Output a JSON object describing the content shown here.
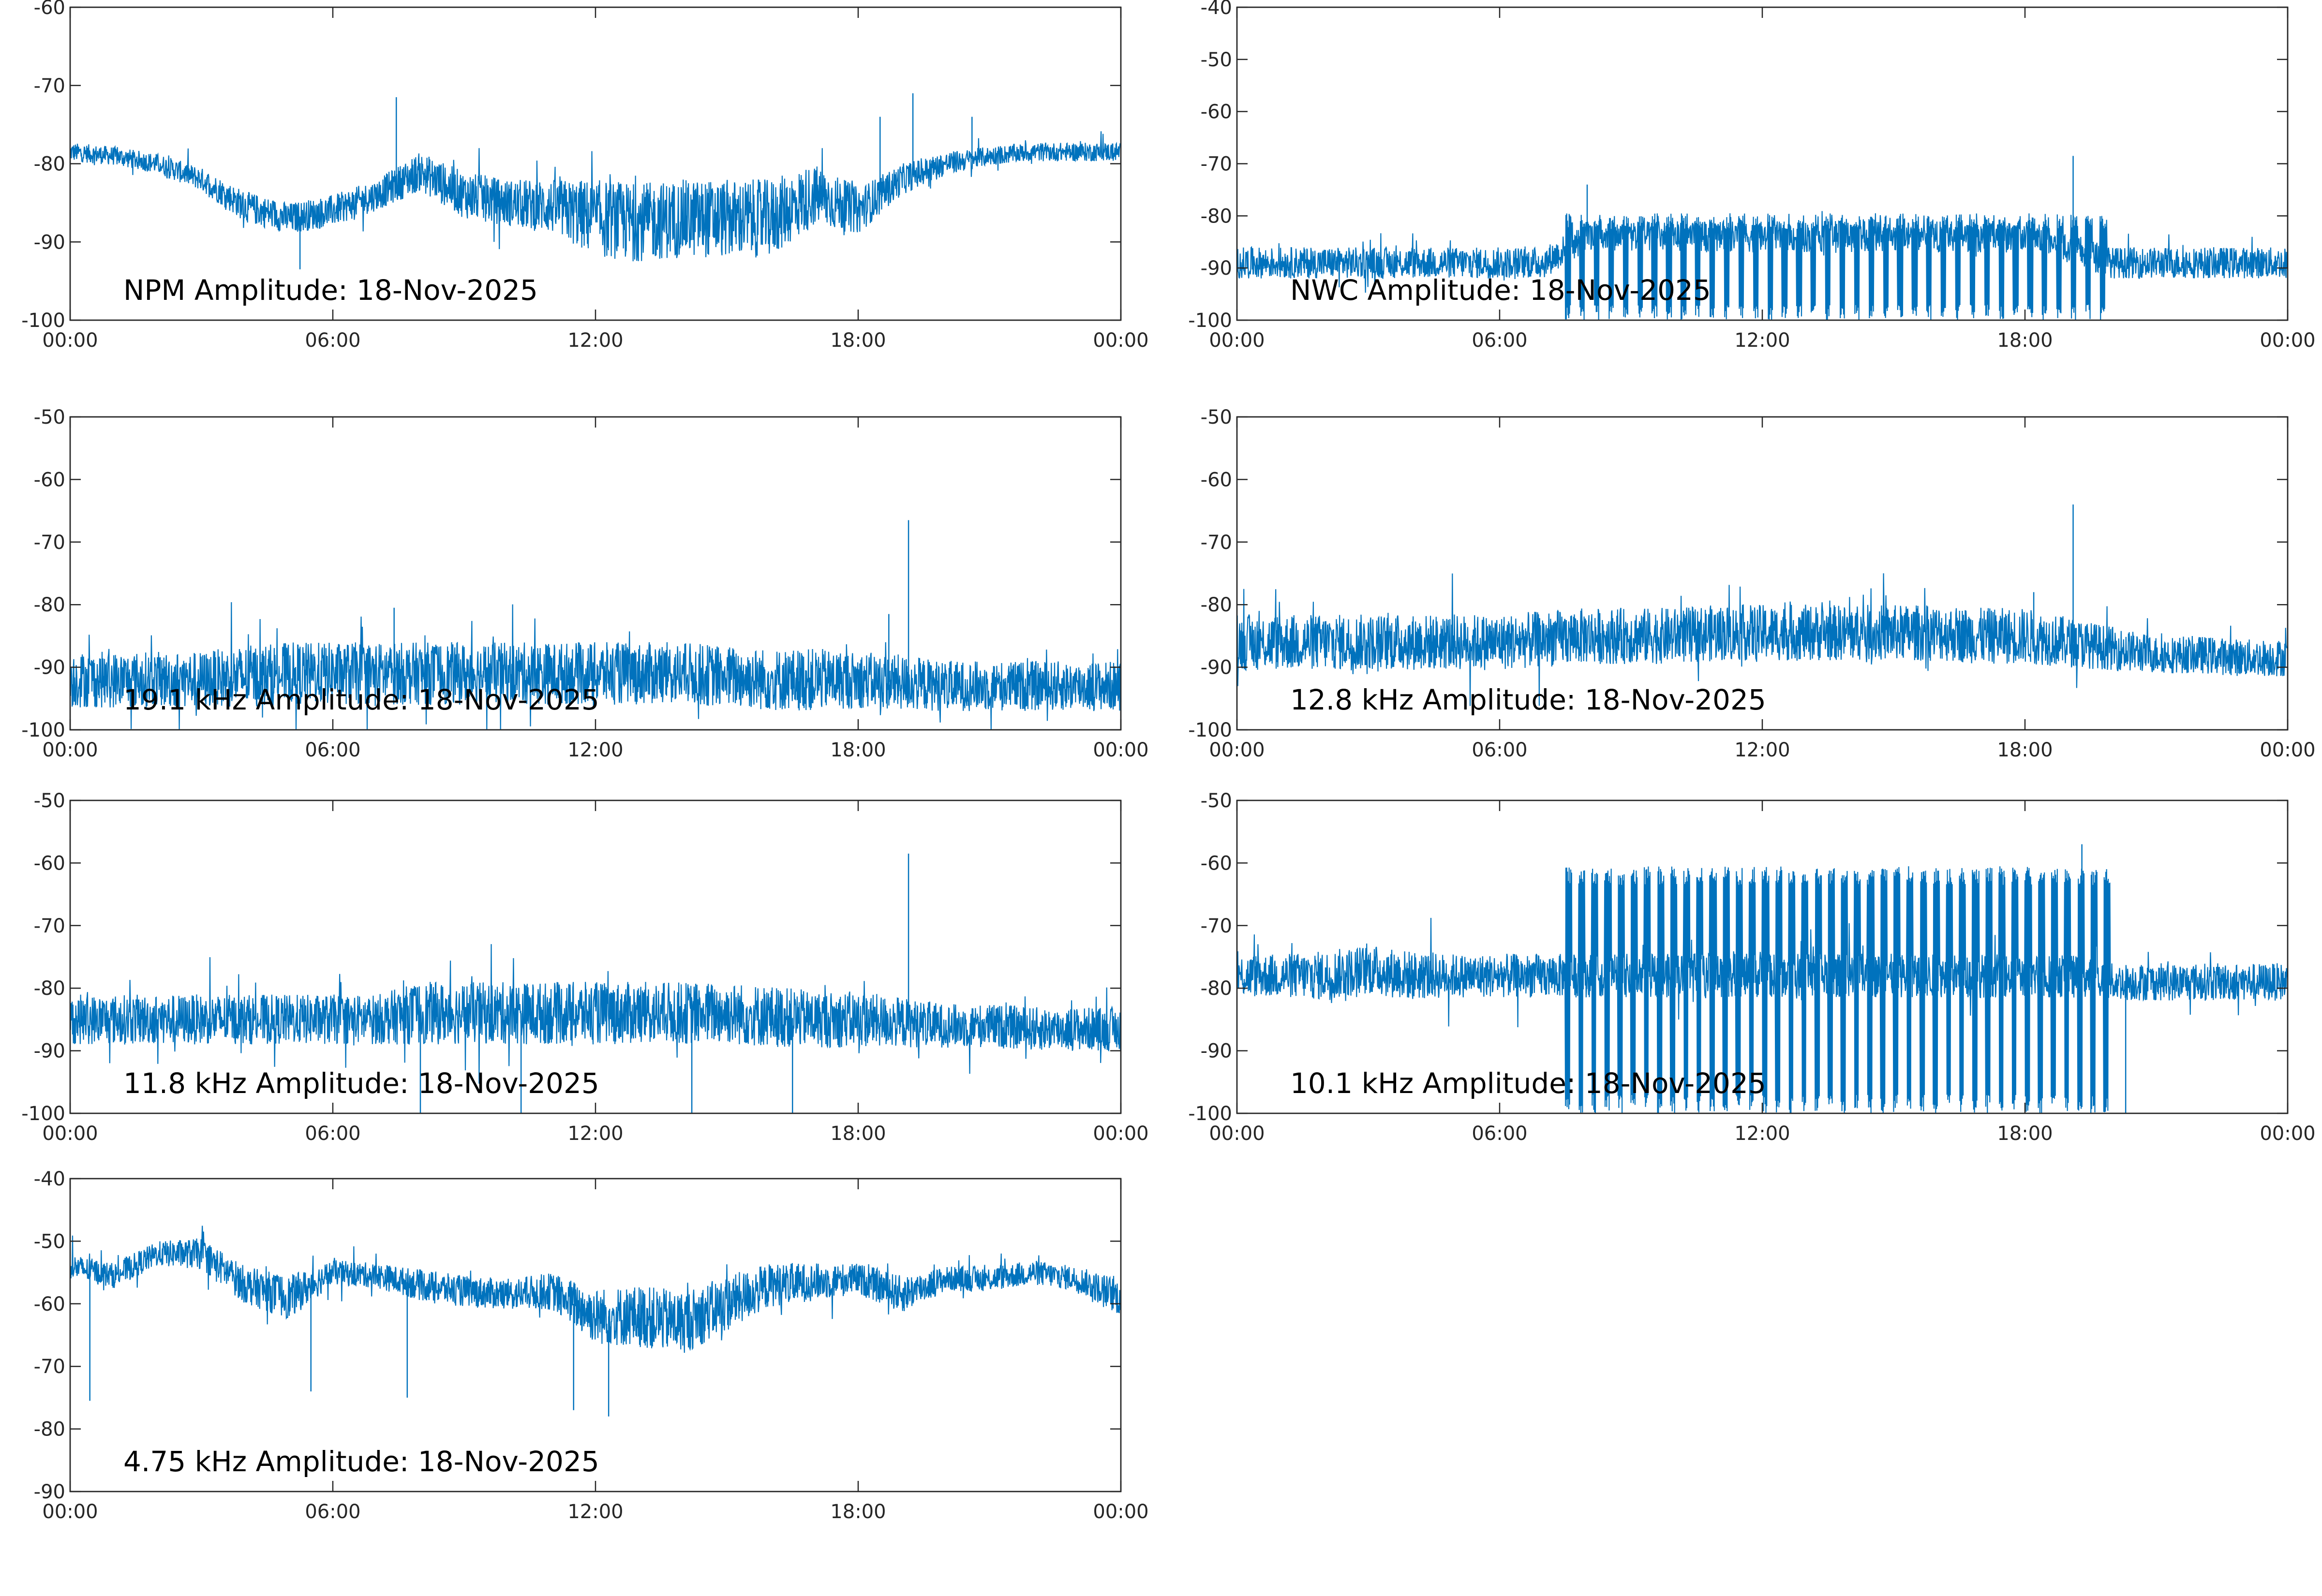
{
  "line_color": "#0072BD",
  "chart_data": [
    {
      "type": "line",
      "title": "NPM Amplitude: 18-Nov-2025",
      "ylim": [
        -100,
        -60
      ],
      "yticks": [
        -100,
        -90,
        -80,
        -70,
        -60
      ],
      "xticks": [
        "00:00",
        "06:00",
        "12:00",
        "18:00",
        "00:00"
      ],
      "xlim_hours": [
        0,
        24
      ],
      "grid": false,
      "baseline": [
        -78.5,
        -79,
        -80,
        -82,
        -85.5,
        -87,
        -86,
        -84,
        -81,
        -84,
        -85,
        -85.5,
        -87,
        -87.5,
        -87,
        -87,
        -87,
        -84,
        -86,
        -82,
        -80,
        -79,
        -78.5,
        -78.5,
        -78.5
      ],
      "noise": [
        1.2,
        1.2,
        1.3,
        1.5,
        2,
        2,
        2,
        2,
        2.5,
        3,
        3,
        3.5,
        5,
        5,
        5,
        5,
        5,
        4,
        3,
        2,
        1.5,
        1.2,
        1.2,
        1.2,
        1.2
      ],
      "spikes": [
        [
          7.45,
          -71.5
        ],
        [
          5.25,
          -93.5
        ],
        [
          18.5,
          -74
        ],
        [
          19.25,
          -71
        ],
        [
          20.6,
          -74
        ]
      ]
    },
    {
      "type": "line",
      "title": "NWC Amplitude: 18-Nov-2025",
      "ylim": [
        -100,
        -40
      ],
      "yticks": [
        -100,
        -90,
        -80,
        -70,
        -60,
        -50,
        -40
      ],
      "xticks": [
        "00:00",
        "06:00",
        "12:00",
        "18:00",
        "00:00"
      ],
      "xlim_hours": [
        0,
        24
      ],
      "grid": false,
      "baseline": [
        -89,
        -89,
        -89,
        -89,
        -89,
        -89,
        -89,
        -89,
        -84,
        -84,
        -84,
        -84,
        -84,
        -84,
        -84,
        -84,
        -84,
        -84,
        -84,
        -86,
        -89,
        -89,
        -89,
        -89,
        -89
      ],
      "noise": [
        3,
        3,
        3,
        3,
        3,
        3,
        3,
        3,
        3,
        3,
        3,
        3,
        3,
        3,
        3,
        3,
        3,
        3,
        3,
        3,
        3,
        3,
        3,
        3,
        3
      ],
      "bursts": {
        "start": 7.5,
        "end": 20,
        "period": 0.33,
        "high": -81,
        "low": -100
      },
      "spikes": [
        [
          19.1,
          -68.5
        ],
        [
          8.0,
          -74
        ]
      ]
    },
    {
      "type": "line",
      "title": "19.1 kHz Amplitude: 18-Nov-2025",
      "ylim": [
        -100,
        -50
      ],
      "yticks": [
        -100,
        -90,
        -80,
        -70,
        -60,
        -50
      ],
      "xticks": [
        "00:00",
        "06:00",
        "12:00",
        "18:00",
        "00:00"
      ],
      "xlim_hours": [
        0,
        24
      ],
      "grid": false,
      "baseline": [
        -92,
        -92,
        -92,
        -92,
        -91.5,
        -91,
        -91,
        -91,
        -91,
        -91,
        -91,
        -91,
        -91,
        -91,
        -91,
        -91.5,
        -92,
        -92,
        -92,
        -92.5,
        -93,
        -93,
        -93,
        -93,
        -93
      ],
      "noise": [
        4.5,
        4.5,
        4.5,
        4.5,
        5,
        5,
        5,
        5,
        5,
        5,
        5,
        5,
        5,
        5,
        5,
        5,
        5,
        5,
        4.5,
        4.5,
        4,
        4,
        4,
        4,
        4
      ],
      "spikes": [
        [
          19.15,
          -66.5
        ],
        [
          7.4,
          -80.5
        ],
        [
          18.7,
          -81.5
        ]
      ]
    },
    {
      "type": "line",
      "title": "12.8 kHz Amplitude: 18-Nov-2025",
      "ylim": [
        -100,
        -50
      ],
      "yticks": [
        -100,
        -90,
        -80,
        -70,
        -60,
        -50
      ],
      "xticks": [
        "00:00",
        "06:00",
        "12:00",
        "18:00",
        "00:00"
      ],
      "xlim_hours": [
        0,
        24
      ],
      "grid": false,
      "baseline": [
        -86,
        -86,
        -86,
        -86,
        -86,
        -86,
        -86,
        -85.5,
        -85,
        -85,
        -85,
        -84.5,
        -84.5,
        -84.5,
        -84.5,
        -84.5,
        -84.5,
        -85,
        -85,
        -86,
        -87,
        -88,
        -88,
        -88.5,
        -88.5
      ],
      "noise": [
        4.5,
        4.5,
        4.5,
        4.5,
        4.5,
        4.5,
        4.5,
        4.5,
        4.5,
        4.5,
        4.5,
        4.5,
        4.5,
        4.5,
        4.5,
        4.5,
        4.5,
        4.5,
        4.5,
        4,
        3.5,
        3,
        3,
        3,
        3
      ],
      "spikes": [
        [
          19.1,
          -64
        ],
        [
          18.2,
          -78
        ]
      ]
    },
    {
      "type": "line",
      "title": "11.8 kHz Amplitude: 18-Nov-2025",
      "ylim": [
        -100,
        -50
      ],
      "yticks": [
        -100,
        -90,
        -80,
        -70,
        -60,
        -50
      ],
      "xticks": [
        "00:00",
        "06:00",
        "12:00",
        "18:00",
        "00:00"
      ],
      "xlim_hours": [
        0,
        24
      ],
      "grid": false,
      "baseline": [
        -85,
        -85,
        -85,
        -85,
        -85,
        -85,
        -85,
        -85,
        -84,
        -84,
        -84,
        -84,
        -84,
        -84,
        -84,
        -84,
        -84.5,
        -85,
        -85,
        -85.5,
        -86,
        -86,
        -86.5,
        -86.5,
        -86.5
      ],
      "noise": [
        4,
        4,
        4,
        4,
        4,
        4,
        4,
        4,
        5,
        5,
        5,
        5,
        5,
        5,
        5,
        5,
        5,
        4.5,
        4.5,
        4,
        3.5,
        3.5,
        3.5,
        3.5,
        3.5
      ],
      "spikes": [
        [
          19.15,
          -58.5
        ],
        [
          14.2,
          -100
        ],
        [
          16.5,
          -100
        ],
        [
          8.0,
          -100
        ],
        [
          10.3,
          -100
        ]
      ]
    },
    {
      "type": "line",
      "title": "10.1 kHz Amplitude: 18-Nov-2025",
      "ylim": [
        -100,
        -50
      ],
      "yticks": [
        -100,
        -90,
        -80,
        -70,
        -60,
        -50
      ],
      "xticks": [
        "00:00",
        "06:00",
        "12:00",
        "18:00",
        "00:00"
      ],
      "xlim_hours": [
        0,
        24
      ],
      "grid": false,
      "baseline": [
        -78,
        -78,
        -78,
        -77,
        -78,
        -78,
        -78,
        -78,
        -78,
        -78,
        -78,
        -78,
        -78,
        -78,
        -78,
        -78,
        -78,
        -78,
        -78,
        -78,
        -79,
        -79,
        -79,
        -79,
        -79
      ],
      "noise": [
        3.5,
        3.5,
        4,
        4,
        4,
        3.5,
        3.5,
        3.5,
        3.5,
        3.5,
        3.5,
        3.5,
        3.5,
        3.5,
        3.5,
        3.5,
        3.5,
        3.5,
        3.5,
        3.5,
        3,
        3,
        3,
        3,
        3
      ],
      "bursts": {
        "start": 7.5,
        "end": 20.1,
        "period": 0.3,
        "high": -62,
        "low": -100
      },
      "spikes": [
        [
          19.3,
          -57
        ],
        [
          20.3,
          -100
        ]
      ]
    },
    {
      "type": "line",
      "title": "4.75 kHz Amplitude: 18-Nov-2025",
      "ylim": [
        -90,
        -40
      ],
      "yticks": [
        -90,
        -80,
        -70,
        -60,
        -50,
        -40
      ],
      "xticks": [
        "00:00",
        "06:00",
        "12:00",
        "18:00",
        "00:00"
      ],
      "xlim_hours": [
        0,
        24
      ],
      "grid": false,
      "baseline": [
        -54,
        -55.5,
        -52,
        -52,
        -57,
        -59,
        -55,
        -55.5,
        -57,
        -58,
        -58.5,
        -58,
        -62,
        -62,
        -63,
        -60,
        -57,
        -56.5,
        -56,
        -58.5,
        -56,
        -56,
        -55,
        -56,
        -59
      ],
      "noise": [
        2,
        2,
        2,
        2.5,
        3,
        3.5,
        2,
        2,
        2.5,
        2.5,
        2.5,
        3,
        4.5,
        5,
        5,
        4.5,
        3.5,
        3,
        2.5,
        3,
        2,
        2,
        2,
        2,
        3
      ],
      "spikes": [
        [
          0.45,
          -75.5
        ],
        [
          11.5,
          -77
        ],
        [
          12.3,
          -78
        ],
        [
          5.5,
          -74
        ],
        [
          7.7,
          -75
        ]
      ]
    }
  ]
}
